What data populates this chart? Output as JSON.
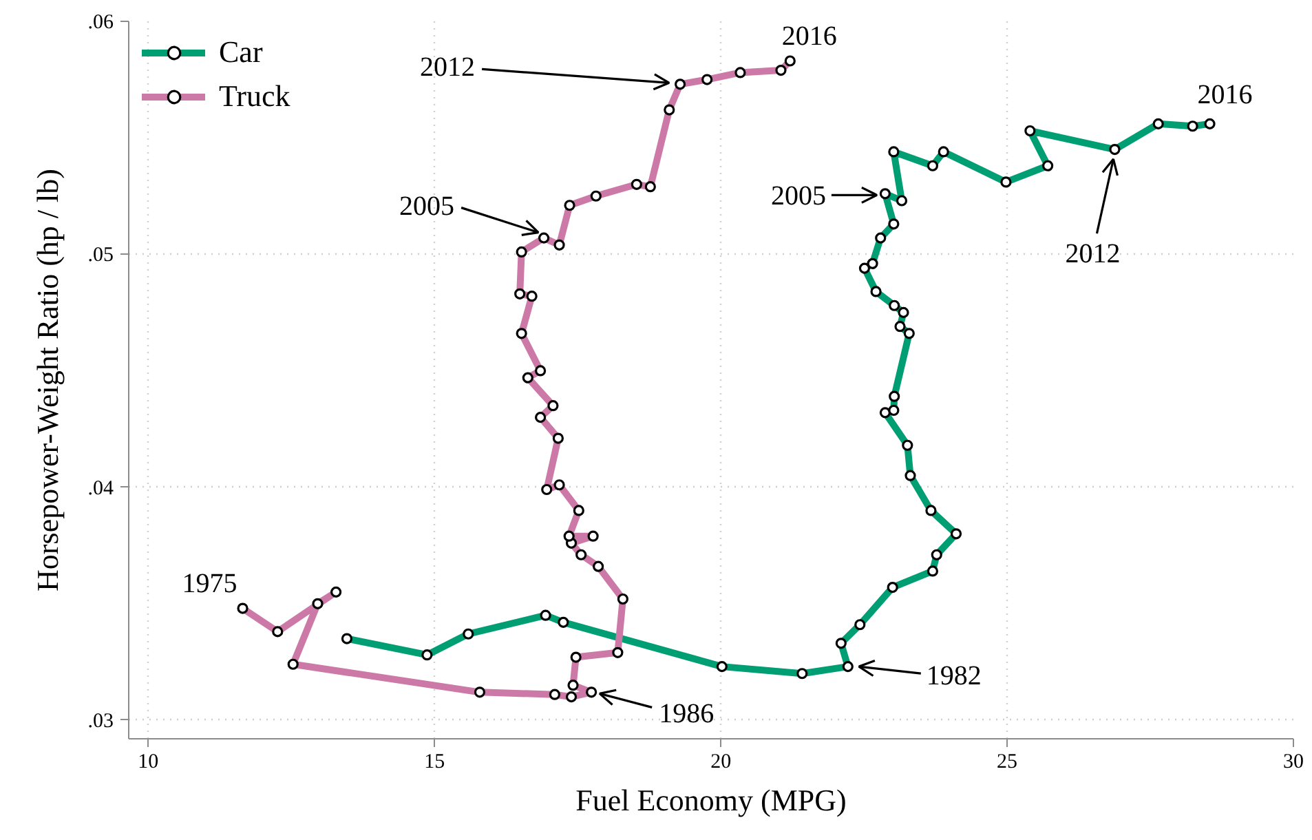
{
  "chart_data": {
    "type": "line",
    "xlabel": "Fuel Economy (MPG)",
    "ylabel": "Horsepower-Weight Ratio (hp / lb)",
    "xlim": [
      9.66,
      30
    ],
    "ylim": [
      0.0292,
      0.06
    ],
    "xticks": [
      10,
      15,
      20,
      25,
      30
    ],
    "yticks": [
      {
        "value": 0.03,
        "label": ".03"
      },
      {
        "value": 0.04,
        "label": ".04"
      },
      {
        "value": 0.05,
        "label": ".05"
      },
      {
        "value": 0.06,
        "label": ".06"
      }
    ],
    "grid": true,
    "legend": "top left",
    "marker": "circle",
    "line_style": "solid",
    "series": [
      {
        "name": "Car",
        "color": "#009e73",
        "x": [
          13.47,
          14.87,
          15.59,
          16.94,
          17.25,
          20.02,
          21.42,
          22.22,
          22.1,
          22.43,
          23.0,
          23.7,
          23.77,
          24.11,
          23.67,
          23.31,
          23.26,
          22.87,
          23.02,
          23.03,
          23.29,
          23.13,
          23.19,
          23.03,
          22.71,
          22.51,
          22.65,
          22.79,
          23.02,
          22.87,
          23.16,
          23.02,
          23.7,
          23.89,
          24.98,
          25.71,
          25.4,
          26.88,
          27.64,
          28.24,
          28.54
        ],
        "values": [
          0.0335,
          0.0328,
          0.0337,
          0.0345,
          0.0342,
          0.0323,
          0.032,
          0.0323,
          0.0333,
          0.0341,
          0.0357,
          0.0364,
          0.0371,
          0.038,
          0.039,
          0.0405,
          0.0418,
          0.0432,
          0.0433,
          0.0439,
          0.0466,
          0.0469,
          0.0475,
          0.0478,
          0.0484,
          0.0494,
          0.0496,
          0.0507,
          0.0513,
          0.0526,
          0.0523,
          0.0544,
          0.0538,
          0.0544,
          0.0531,
          0.0538,
          0.0553,
          0.0545,
          0.0556,
          0.0555,
          0.0556
        ]
      },
      {
        "name": "Truck",
        "color": "#cc79a7",
        "x": [
          11.65,
          12.26,
          13.28,
          12.96,
          12.53,
          15.79,
          17.1,
          17.39,
          17.74,
          17.42,
          17.47,
          18.2,
          18.29,
          17.86,
          17.56,
          17.39,
          17.77,
          17.35,
          17.52,
          17.18,
          16.96,
          17.16,
          16.85,
          17.07,
          16.63,
          16.85,
          16.52,
          16.7,
          16.49,
          16.52,
          16.91,
          17.18,
          17.36,
          17.82,
          18.53,
          18.77,
          19.1,
          19.29,
          19.76,
          20.34,
          21.05,
          21.21
        ],
        "values": [
          0.0348,
          0.0338,
          0.0355,
          0.035,
          0.0324,
          0.0312,
          0.0311,
          0.031,
          0.0312,
          0.0315,
          0.0327,
          0.0329,
          0.0352,
          0.0366,
          0.0371,
          0.0376,
          0.0379,
          0.0379,
          0.039,
          0.0401,
          0.0399,
          0.0421,
          0.043,
          0.0435,
          0.0447,
          0.045,
          0.0466,
          0.0482,
          0.0483,
          0.0501,
          0.0507,
          0.0504,
          0.0521,
          0.0525,
          0.053,
          0.0529,
          0.0562,
          0.0573,
          0.0575,
          0.0578,
          0.0579,
          0.0583
        ]
      }
    ],
    "annotations": [
      {
        "text": "1975",
        "x": 11.65,
        "y": 0.0348
      },
      {
        "text": "1986",
        "x": 17.74,
        "y": 0.0312
      },
      {
        "text": "2005",
        "x": 16.91,
        "y": 0.0507
      },
      {
        "text": "2012",
        "x": 19.29,
        "y": 0.0573
      },
      {
        "text": "2016",
        "x": 21.21,
        "y": 0.0583
      },
      {
        "text": "1982",
        "x": 22.22,
        "y": 0.0323
      },
      {
        "text": "2005",
        "x": 22.87,
        "y": 0.0526
      },
      {
        "text": "2012",
        "x": 26.88,
        "y": 0.0545
      },
      {
        "text": "2016",
        "x": 28.54,
        "y": 0.0556
      }
    ]
  }
}
